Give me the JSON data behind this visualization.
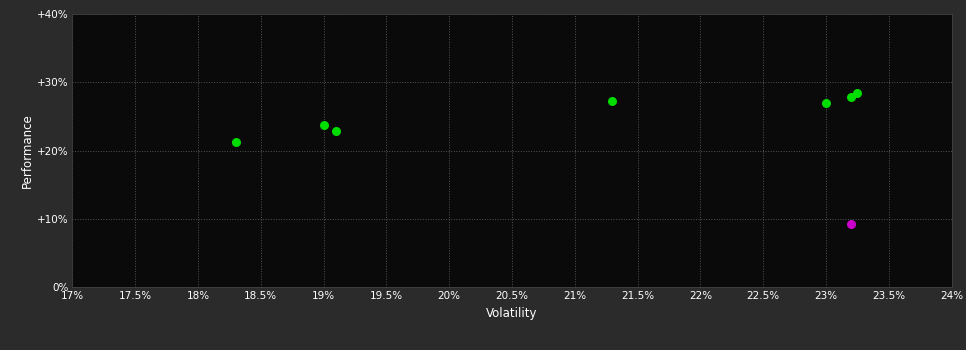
{
  "background_color": "#2b2b2b",
  "plot_bg_color": "#0a0a0a",
  "grid_color": "#555555",
  "text_color": "#ffffff",
  "xlabel": "Volatility",
  "ylabel": "Performance",
  "xlim": [
    0.17,
    0.24
  ],
  "ylim": [
    0.0,
    0.4
  ],
  "xticks": [
    0.17,
    0.175,
    0.18,
    0.185,
    0.19,
    0.195,
    0.2,
    0.205,
    0.21,
    0.215,
    0.22,
    0.225,
    0.23,
    0.235,
    0.24
  ],
  "yticks": [
    0.0,
    0.1,
    0.2,
    0.3,
    0.4
  ],
  "ytick_labels": [
    "0%",
    "+10%",
    "+20%",
    "+30%",
    "+40%"
  ],
  "xtick_labels": [
    "17%",
    "17.5%",
    "18%",
    "18.5%",
    "19%",
    "19.5%",
    "20%",
    "20.5%",
    "21%",
    "21.5%",
    "22%",
    "22.5%",
    "23%",
    "23.5%",
    "24%"
  ],
  "green_points": [
    [
      0.183,
      0.213
    ],
    [
      0.19,
      0.238
    ],
    [
      0.191,
      0.228
    ],
    [
      0.213,
      0.272
    ],
    [
      0.23,
      0.27
    ],
    [
      0.232,
      0.278
    ],
    [
      0.2325,
      0.284
    ]
  ],
  "magenta_points": [
    [
      0.232,
      0.093
    ]
  ],
  "green_color": "#00dd00",
  "magenta_color": "#cc00cc",
  "marker_size": 30
}
